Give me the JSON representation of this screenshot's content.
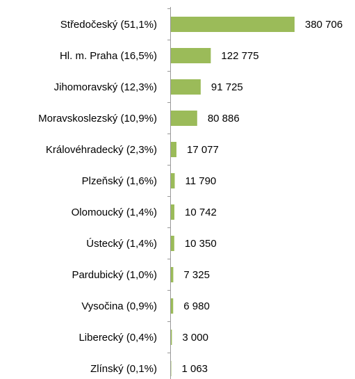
{
  "chart_data": {
    "type": "bar",
    "orientation": "horizontal",
    "categories": [
      "Středočeský (51,1%)",
      "Hl. m. Praha (16,5%)",
      "Jihomoravský (12,3%)",
      "Moravskoslezský (10,9%)",
      "Královéhradecký (2,3%)",
      "Plzeňský (1,6%)",
      "Olomoucký (1,4%)",
      "Ústecký (1,4%)",
      "Pardubický (1,0%)",
      "Vysočina (0,9%)",
      "Liberecký (0,4%)",
      "Zlínský (0,1%)"
    ],
    "values": [
      380706,
      122775,
      91725,
      80886,
      17077,
      11790,
      10742,
      10350,
      7325,
      6980,
      3000,
      1063
    ],
    "value_labels": [
      "380 706",
      "122 775",
      "91 725",
      "80 886",
      "17 077",
      "11 790",
      "10 742",
      "10 350",
      "7 325",
      "6 980",
      "3 000",
      "1 063"
    ],
    "color": "#9bbb59"
  }
}
